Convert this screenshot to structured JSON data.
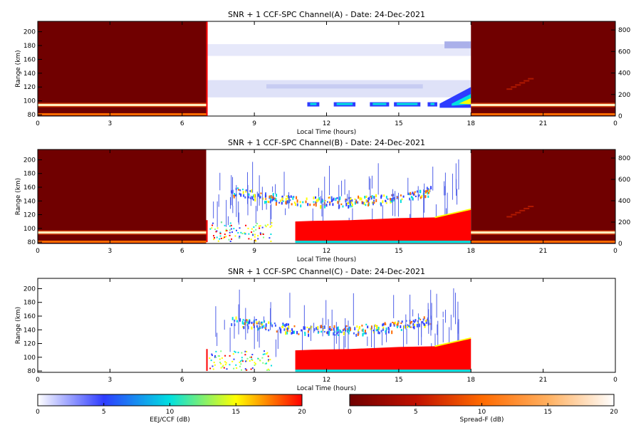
{
  "chart_data": [
    {
      "type": "heatmap",
      "title": "SNR + 1 CCF-SPC Channel(A) - Date: 24-Dec-2021",
      "xlabel": "Local Time (hours)",
      "ylabel": "Range (km)",
      "xlim": [
        0,
        24
      ],
      "x_ticks": [
        "0",
        "3",
        "6",
        "9",
        "12",
        "15",
        "18",
        "21",
        "0"
      ],
      "ylim": [
        78,
        215
      ],
      "y_ticks": [
        "80",
        "100",
        "120",
        "140",
        "160",
        "180",
        "200"
      ],
      "right_y_ticks": [
        "0",
        "200",
        "400",
        "600",
        "800"
      ],
      "right_ylim": [
        0,
        880
      ],
      "segments": [
        {
          "name": "Spread-F",
          "x_range": [
            0,
            7
          ],
          "colormap": "Spread-F"
        },
        {
          "name": "EEJ/CCF",
          "x_range": [
            7,
            18
          ],
          "colormap": "EEJ/CCF"
        },
        {
          "name": "Spread-F",
          "x_range": [
            18,
            24
          ],
          "colormap": "Spread-F"
        }
      ]
    },
    {
      "type": "heatmap",
      "title": "SNR + 1 CCF-SPC Channel(B) - Date: 24-Dec-2021",
      "xlabel": "Local Time (hours)",
      "ylabel": "Range (km)",
      "xlim": [
        0,
        24
      ],
      "x_ticks": [
        "0",
        "3",
        "6",
        "9",
        "12",
        "15",
        "18",
        "21",
        "0"
      ],
      "ylim": [
        78,
        215
      ],
      "y_ticks": [
        "80",
        "100",
        "120",
        "140",
        "160",
        "180",
        "200"
      ],
      "right_y_ticks": [
        "0",
        "200",
        "400",
        "600",
        "800"
      ],
      "right_ylim": [
        0,
        880
      ],
      "segments": [
        {
          "name": "Spread-F",
          "x_range": [
            0,
            7
          ],
          "colormap": "Spread-F"
        },
        {
          "name": "EEJ/CCF",
          "x_range": [
            7,
            18
          ],
          "colormap": "EEJ/CCF"
        },
        {
          "name": "Spread-F",
          "x_range": [
            18,
            24
          ],
          "colormap": "Spread-F"
        }
      ]
    },
    {
      "type": "heatmap",
      "title": "SNR + 1 CCF-SPC Channel(C) - Date: 24-Dec-2021",
      "xlabel": "Local Time (hours)",
      "ylabel": "Range (km)",
      "xlim": [
        0,
        24
      ],
      "x_ticks": [
        "0",
        "3",
        "6",
        "9",
        "12",
        "15",
        "18",
        "21",
        "0"
      ],
      "ylim": [
        78,
        215
      ],
      "y_ticks": [
        "80",
        "100",
        "120",
        "140",
        "160",
        "180",
        "200"
      ],
      "segments": [
        {
          "name": "EEJ/CCF",
          "x_range": [
            7,
            18
          ],
          "colormap": "EEJ/CCF"
        }
      ]
    }
  ],
  "colorbars": [
    {
      "name": "EEJ/CCF",
      "label": "EEJ/CCF (dB)",
      "range": [
        0,
        20
      ],
      "ticks": [
        "0",
        "5",
        "10",
        "15",
        "20"
      ],
      "colors": [
        "#ffffff",
        "#2e3cff",
        "#00e0e0",
        "#ffff00",
        "#ff0000"
      ]
    },
    {
      "name": "Spread-F",
      "label": "Spread-F (dB)",
      "range": [
        0,
        20
      ],
      "ticks": [
        "0",
        "5",
        "10",
        "15",
        "20"
      ],
      "colors": [
        "#700000",
        "#c01000",
        "#ff6a00",
        "#ffb060",
        "#ffffff"
      ]
    }
  ]
}
